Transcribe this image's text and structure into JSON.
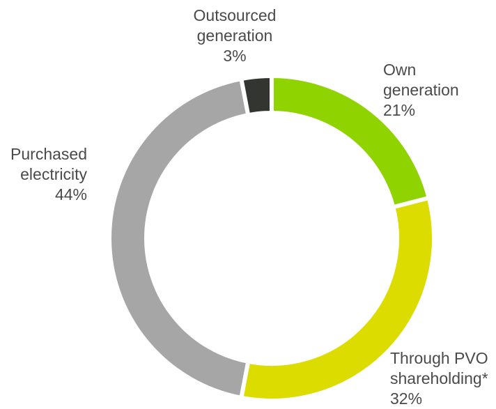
{
  "chart_data": {
    "type": "donut",
    "categories": [
      "Own\ngeneration",
      "Through PVO\nshareholding*",
      "Purchased\nelectricity",
      "Outsourced\ngeneration"
    ],
    "values": [
      21,
      32,
      44,
      3
    ],
    "value_labels": [
      "21%",
      "32%",
      "44%",
      "3%"
    ],
    "colors": [
      "#8fd400",
      "#dcdc00",
      "#a6a6a6",
      "#333530"
    ]
  }
}
